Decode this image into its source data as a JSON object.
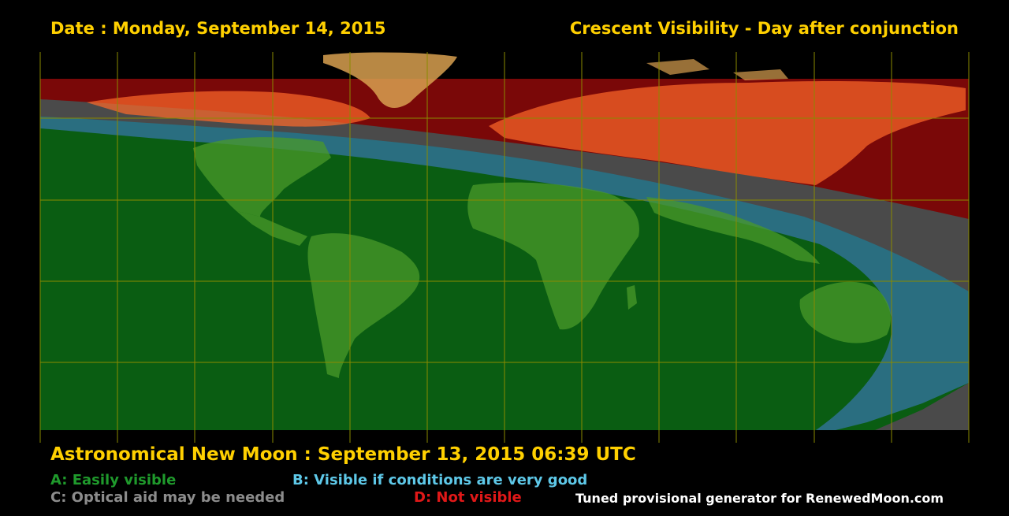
{
  "header": {
    "date_text": "Date : Monday, September 14, 2015",
    "title": "Crescent Visibility - Day after conjunction"
  },
  "footer": {
    "new_moon": "Astronomical New Moon : September 13, 2015 06:39 UTC",
    "credit": "Tuned provisional generator for RenewedMoon.com"
  },
  "legend": [
    {
      "id": "A",
      "text": "A: Easily visible",
      "color": "#1f9a2c"
    },
    {
      "id": "B",
      "text": "B: Visible if conditions are very good",
      "color": "#5ec8e8"
    },
    {
      "id": "C",
      "text": "C: Optical aid may be needed",
      "color": "#8c8c8c"
    },
    {
      "id": "D",
      "text": "D: Not visible",
      "color": "#e01818"
    }
  ],
  "colors": {
    "zone_a": "#0a5d12",
    "zone_b": "#2a6e80",
    "zone_c": "#4a4a4a",
    "zone_d": "#7a0808",
    "grid": "#8a8a00",
    "heading": "#ffd000"
  }
}
